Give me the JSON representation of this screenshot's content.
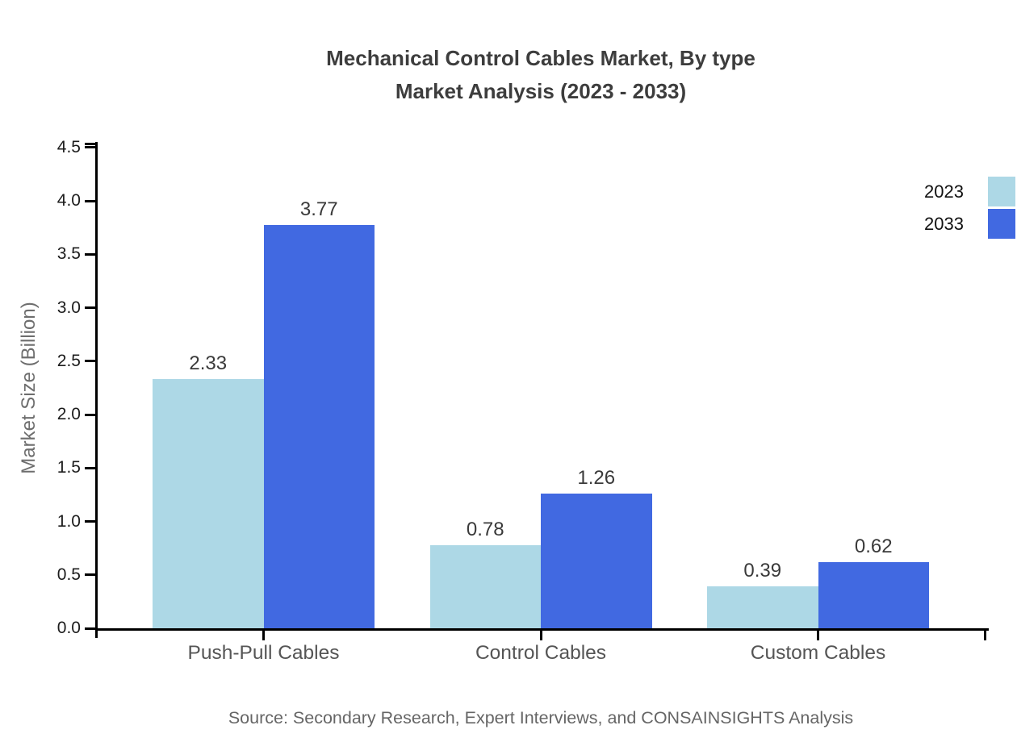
{
  "chart_data": {
    "type": "bar",
    "title": "Mechanical Control Cables Market, By type",
    "subtitle": "Market Analysis (2023 - 2033)",
    "ylabel": "Market Size (Billion)",
    "categories": [
      "Push-Pull Cables",
      "Control Cables",
      "Custom Cables"
    ],
    "series": [
      {
        "name": "2023",
        "color": "#ADD8E6",
        "values": [
          2.33,
          0.78,
          0.39
        ]
      },
      {
        "name": "2033",
        "color": "#4169E1",
        "values": [
          3.77,
          1.26,
          0.62
        ]
      }
    ],
    "ylim": [
      0,
      4.5
    ],
    "yticks": [
      "0.0",
      "0.5",
      "1.0",
      "1.5",
      "2.0",
      "2.5",
      "3.0",
      "3.5",
      "4.0",
      "4.5"
    ],
    "grid": false,
    "legend_position": "upper right",
    "source": "Source: Secondary Research, Expert Interviews, and CONSAINSIGHTS Analysis",
    "colors": {
      "axis": "#000000",
      "title_text": "#3d3d3d",
      "tick_text": "#1c1c1c",
      "category_text": "#555555",
      "value_text": "#3a3a3a",
      "source_text": "#666666"
    }
  }
}
